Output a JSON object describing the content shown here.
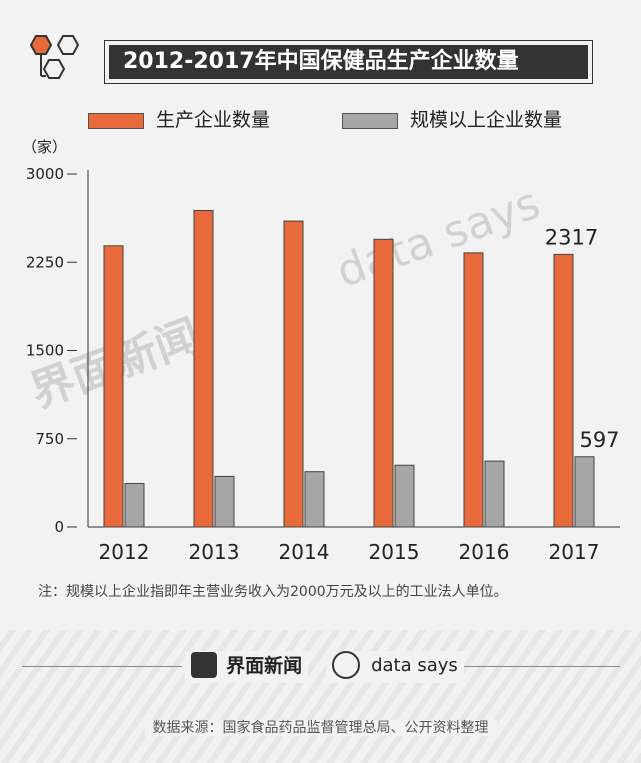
{
  "title": "2012-2017年中国保健品生产企业数量",
  "unit": "（家）",
  "legend": [
    {
      "label": "生产企业数量",
      "color": "#e8693a"
    },
    {
      "label": "规模以上企业数量",
      "color": "#a6a6a6"
    }
  ],
  "chart_data": {
    "type": "bar",
    "title": "2012-2017年中国保健品生产企业数量",
    "categories": [
      "2012",
      "2013",
      "2014",
      "2015",
      "2016",
      "2017"
    ],
    "series": [
      {
        "name": "生产企业数量",
        "color": "#e8693a",
        "values": [
          2390,
          2690,
          2600,
          2445,
          2330,
          2317
        ]
      },
      {
        "name": "规模以上企业数量",
        "color": "#a6a6a6",
        "values": [
          370,
          430,
          470,
          525,
          560,
          597
        ]
      }
    ],
    "yticks": [
      0,
      750,
      1500,
      2250,
      3000
    ],
    "ylim": [
      0,
      3000
    ],
    "data_labels": [
      {
        "series": 0,
        "index": 5,
        "text": "2317"
      },
      {
        "series": 1,
        "index": 5,
        "text": "597"
      }
    ],
    "xlabel": "",
    "ylabel": "（家）",
    "grid": false,
    "legend_position": "top"
  },
  "watermarks": {
    "jiemian": "界面新闻",
    "datasays": "data says"
  },
  "note": "注：规模以上企业指即年主营业务收入为2000万元及以上的工业法人单位。",
  "footer": {
    "brand_jiemian": "界面新闻",
    "brand_datasays": "data says"
  },
  "source": "数据来源：国家食品药品监督管理总局、公开资料整理"
}
